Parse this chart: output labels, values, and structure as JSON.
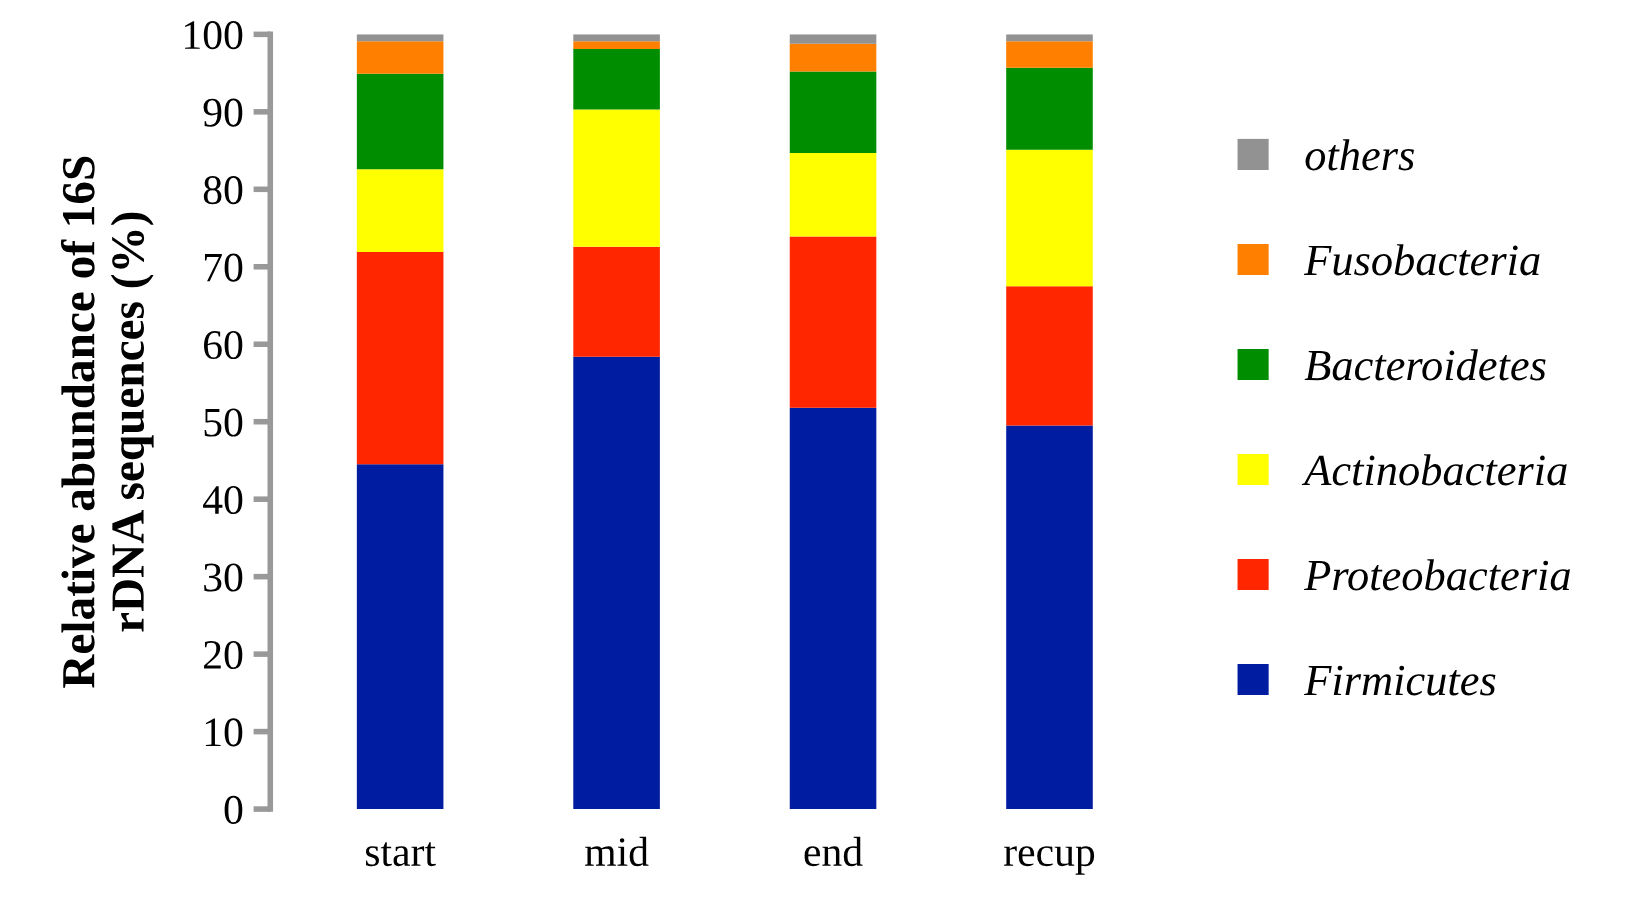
{
  "chart_data": {
    "type": "bar",
    "stacked": true,
    "ylabel": "Relative abundance of 16S\nrDNA sequences (%)",
    "categories": [
      "start",
      "mid",
      "end",
      "recup"
    ],
    "series": [
      {
        "name": "Firmicutes",
        "color": "#001ca0",
        "values": [
          44.5,
          58.4,
          51.8,
          49.5
        ]
      },
      {
        "name": "Proteobacteria",
        "color": "#ff2600",
        "values": [
          27.4,
          14.2,
          22.1,
          18.0
        ]
      },
      {
        "name": "Actinobacteria",
        "color": "#ffff00",
        "values": [
          10.7,
          17.7,
          10.8,
          17.6
        ]
      },
      {
        "name": "Bacteroidetes",
        "color": "#008e00",
        "values": [
          12.3,
          7.8,
          10.5,
          10.6
        ]
      },
      {
        "name": "Fusobacteria",
        "color": "#ff7f00",
        "values": [
          4.2,
          1.0,
          3.6,
          3.4
        ]
      },
      {
        "name": "others",
        "color": "#929292",
        "values": [
          0.9,
          0.9,
          1.2,
          0.9
        ]
      }
    ],
    "ylim": [
      0,
      100
    ],
    "yticks": [
      0,
      10,
      20,
      30,
      40,
      50,
      60,
      70,
      80,
      90,
      100
    ],
    "grid": false,
    "legend": "right"
  }
}
